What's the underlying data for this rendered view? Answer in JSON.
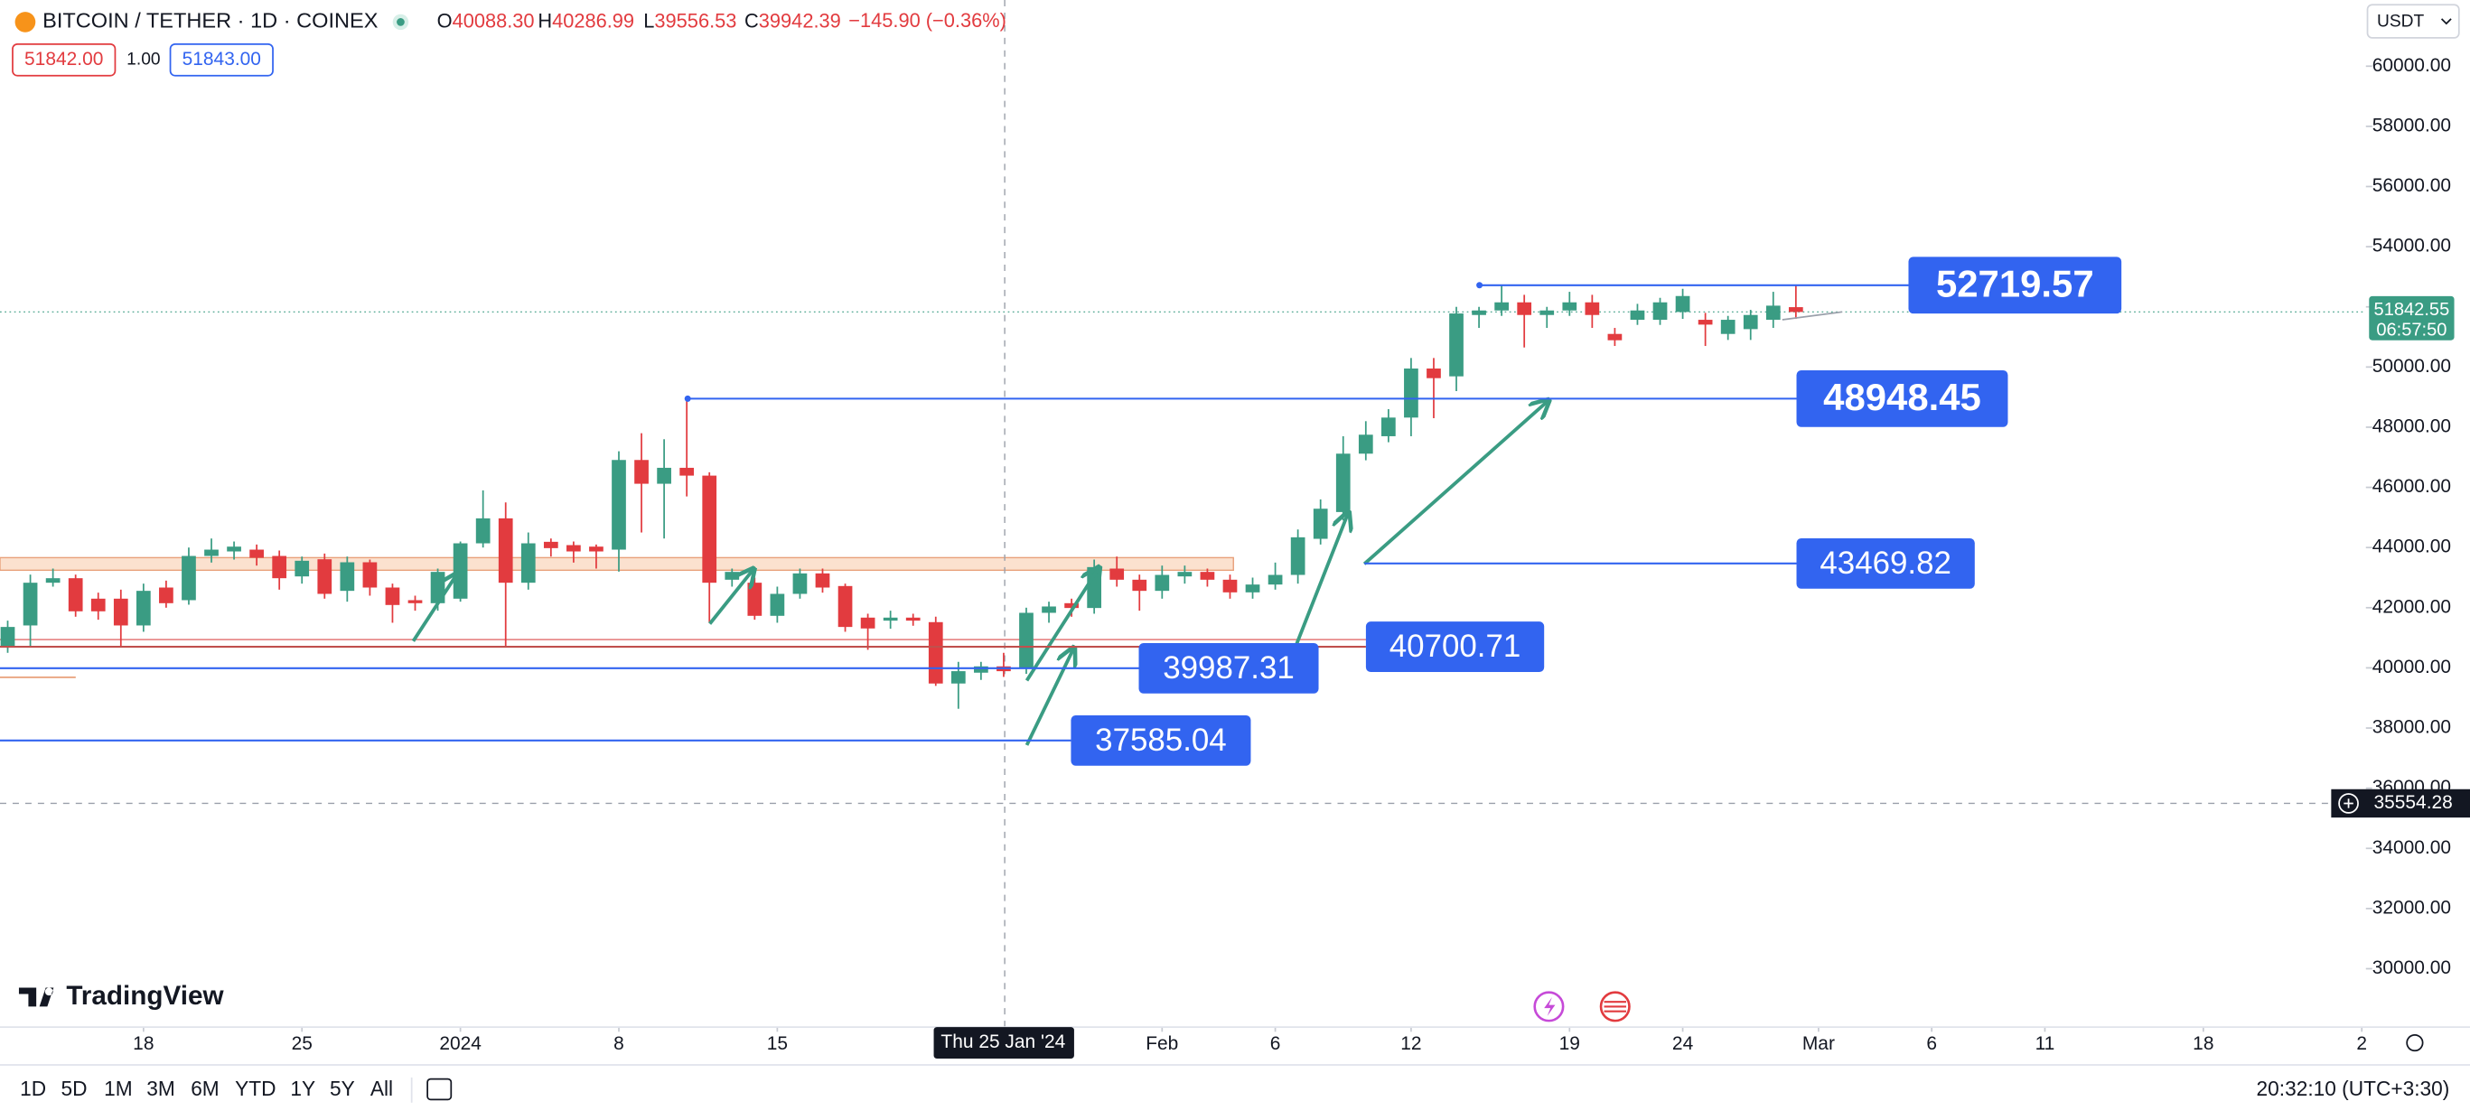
{
  "header": {
    "symbol": "BITCOIN / TETHER · 1D · COINEX",
    "ohlc": [
      {
        "key": "O",
        "value": "40088.30"
      },
      {
        "key": "H",
        "value": "40286.99"
      },
      {
        "key": "L",
        "value": "39556.53"
      },
      {
        "key": "C",
        "value": "39942.39"
      }
    ],
    "change": "−145.90 (−0.36%)",
    "sell": "51842.00",
    "spread": "1.00",
    "buy": "51843.00",
    "currency": "USDT"
  },
  "toolbar": {
    "ranges": [
      "1D",
      "5D",
      "1M",
      "3M",
      "6M",
      "YTD",
      "1Y",
      "5Y",
      "All"
    ],
    "clock": "20:32:10 (UTC+3:30)"
  },
  "brand": "TradingView",
  "crosshair": {
    "date": "Thu 25 Jan '24",
    "price": "35554.28"
  },
  "last_price": {
    "price": "51842.55",
    "countdown": "06:57:50"
  },
  "chart_data": {
    "type": "candlestick",
    "up_color": "#3a9c83",
    "down_color": "#e23b3f",
    "level_color": "#3264f0",
    "levels": [
      52719.57,
      48948.45,
      43469.82,
      40700.71,
      39987.31,
      37585.04
    ],
    "xlim": [
      -6.34,
      98.6
    ],
    "ylim": [
      28165,
      62200
    ],
    "xticks": [
      {
        "value": 0,
        "label": "18"
      },
      {
        "value": 7,
        "label": "25"
      },
      {
        "value": 14,
        "label": "2024"
      },
      {
        "value": 21,
        "label": "8"
      },
      {
        "value": 28,
        "label": "15"
      },
      {
        "value": 45,
        "label": "Feb"
      },
      {
        "value": 50,
        "label": "6"
      },
      {
        "value": 56,
        "label": "12"
      },
      {
        "value": 63,
        "label": "19"
      },
      {
        "value": 68,
        "label": "24"
      },
      {
        "value": 74,
        "label": "Mar"
      },
      {
        "value": 79,
        "label": "6"
      },
      {
        "value": 84,
        "label": "11"
      },
      {
        "value": 91,
        "label": "18"
      },
      {
        "value": 98,
        "label": "2"
      }
    ],
    "yticks": [
      {
        "value": 30000,
        "label": "30000.00"
      },
      {
        "value": 32000,
        "label": "32000.00"
      },
      {
        "value": 34000,
        "label": "34000.00"
      },
      {
        "value": 36000,
        "label": "36000.00"
      },
      {
        "value": 38000,
        "label": "38000.00"
      },
      {
        "value": 40000,
        "label": "40000.00"
      },
      {
        "value": 42000,
        "label": "42000.00"
      },
      {
        "value": 44000,
        "label": "44000.00"
      },
      {
        "value": 46000,
        "label": "46000.00"
      },
      {
        "value": 48000,
        "label": "48000.00"
      },
      {
        "value": 50000,
        "label": "50000.00"
      },
      {
        "value": 52000,
        "label": "52000.00"
      },
      {
        "value": 54000,
        "label": "54000.00"
      },
      {
        "value": 56000,
        "label": "56000.00"
      },
      {
        "value": 58000,
        "label": "58000.00"
      },
      {
        "value": 60000,
        "label": "60000.00"
      }
    ],
    "x": [
      -6,
      -5,
      -4,
      -3,
      -2,
      -1,
      0,
      1,
      2,
      3,
      4,
      5,
      6,
      7,
      8,
      9,
      10,
      11,
      12,
      13,
      14,
      15,
      16,
      17,
      18,
      19,
      20,
      21,
      22,
      23,
      24,
      25,
      26,
      27,
      28,
      29,
      30,
      31,
      32,
      33,
      34,
      35,
      36,
      37,
      38,
      39,
      40,
      41,
      42,
      43,
      44,
      45,
      46,
      47,
      48,
      49,
      50,
      51,
      52,
      53,
      54,
      55,
      56,
      57,
      58,
      59,
      60,
      61,
      62,
      63,
      64,
      65,
      66,
      67,
      68,
      69,
      70,
      71,
      72,
      73
    ],
    "open": [
      40730,
      41410,
      42830,
      42980,
      42300,
      42300,
      41410,
      42670,
      42250,
      43720,
      43870,
      43930,
      43720,
      43040,
      43610,
      42560,
      43510,
      42670,
      42250,
      42150,
      42300,
      44140,
      44970,
      42830,
      44190,
      44080,
      44030,
      43930,
      46910,
      46120,
      46650,
      46390,
      42930,
      42830,
      41730,
      42460,
      43140,
      42720,
      41670,
      41570,
      41670,
      41520,
      39480,
      39840,
      40050,
      40000,
      41830,
      42150,
      41990,
      43300,
      42930,
      42560,
      43040,
      43190,
      42930,
      42510,
      42770,
      43090,
      44290,
      45180,
      47120,
      47700,
      48320,
      49950,
      49690,
      51730,
      51880,
      52150,
      51730,
      51880,
      52150,
      51100,
      51570,
      51570,
      51830,
      51570,
      51100,
      51260,
      51570,
      51990
    ],
    "high": [
      41570,
      43100,
      43300,
      43100,
      42500,
      42600,
      42800,
      42900,
      44000,
      44300,
      44200,
      44100,
      43900,
      43700,
      43800,
      43700,
      43600,
      42800,
      42400,
      43300,
      44200,
      45900,
      45500,
      44500,
      44300,
      44200,
      44100,
      47200,
      47800,
      47600,
      49000,
      46500,
      43300,
      43000,
      42700,
      43300,
      43300,
      42800,
      41800,
      41900,
      41800,
      41700,
      40200,
      40200,
      40500,
      42000,
      42200,
      42300,
      43600,
      43700,
      43100,
      43400,
      43400,
      43300,
      43100,
      43000,
      43500,
      44600,
      45600,
      47700,
      48200,
      48600,
      50300,
      50300,
      52000,
      52000,
      52720,
      52400,
      52000,
      52500,
      52400,
      51300,
      52100,
      52300,
      52600,
      51800,
      51700,
      51900,
      52500,
      52720
    ],
    "low": [
      40500,
      40700,
      42700,
      41700,
      41600,
      40700,
      41200,
      42000,
      42100,
      43500,
      43600,
      43400,
      42600,
      42800,
      42300,
      42200,
      42400,
      41500,
      41900,
      41900,
      42200,
      44000,
      40700,
      42600,
      43700,
      43500,
      43300,
      43200,
      44500,
      44300,
      45700,
      41500,
      42700,
      41600,
      41500,
      42300,
      42500,
      41200,
      40600,
      41300,
      41400,
      39400,
      38640,
      39600,
      39700,
      39800,
      41500,
      41700,
      41800,
      42700,
      41900,
      42300,
      42800,
      42700,
      42300,
      42300,
      42600,
      42800,
      44100,
      44900,
      46900,
      47500,
      47700,
      48300,
      49200,
      51300,
      51700,
      50650,
      51300,
      51700,
      51300,
      50700,
      51400,
      51400,
      51600,
      50700,
      50900,
      50900,
      51300,
      51600
    ],
    "close": [
      41360,
      42830,
      42980,
      41880,
      41880,
      41410,
      42560,
      42150,
      43720,
      43930,
      44030,
      43660,
      42980,
      43560,
      42460,
      43510,
      42670,
      42090,
      42150,
      43190,
      44140,
      44970,
      42830,
      44140,
      43980,
      43870,
      43870,
      46910,
      46120,
      46650,
      46390,
      42830,
      43190,
      41730,
      42460,
      43140,
      42670,
      41360,
      41310,
      41670,
      41570,
      39480,
      39890,
      40050,
      39890,
      41830,
      42040,
      41990,
      43350,
      42930,
      42560,
      43090,
      43190,
      42930,
      42510,
      42770,
      43090,
      44340,
      45290,
      47120,
      47750,
      48320,
      49950,
      49630,
      51780,
      51880,
      52150,
      51730,
      51880,
      52150,
      51730,
      50890,
      51880,
      52150,
      52360,
      51410,
      51570,
      51730,
      52040,
      51830
    ]
  }
}
